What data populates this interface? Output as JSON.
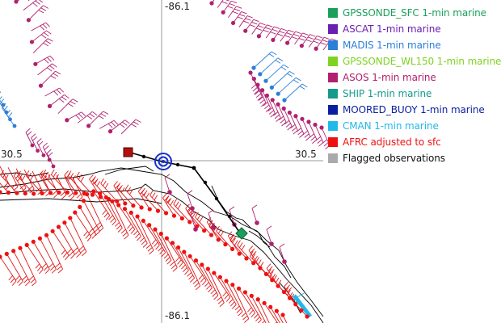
{
  "map": {
    "axis_labels": {
      "lon_top": "-86.1",
      "lon_bottom": "-86.1",
      "lat_left": "30.5",
      "lat_right": "30.5"
    }
  },
  "legend": {
    "items": [
      {
        "label": "GPSSONDE_SFC 1-min marine",
        "color": "#1aa05a"
      },
      {
        "label": "ASCAT 1-min marine",
        "color": "#6a1fb0"
      },
      {
        "label": "MADIS 1-min marine",
        "color": "#2a7fd8"
      },
      {
        "label": "GPSSONDE_WL150 1-min marine",
        "color": "#7ed321"
      },
      {
        "label": "ASOS 1-min marine",
        "color": "#b0206e"
      },
      {
        "label": "SHIP 1-min marine",
        "color": "#169a8c"
      },
      {
        "label": "MOORED_BUOY 1-min marine",
        "color": "#0a1fa0"
      },
      {
        "label": "CMAN 1-min marine",
        "color": "#22b8e8"
      },
      {
        "label": "AFRC adjusted to sfc",
        "color": "#ee1111"
      },
      {
        "label": "Flagged observations",
        "color": "#aaaaaa"
      }
    ]
  }
}
